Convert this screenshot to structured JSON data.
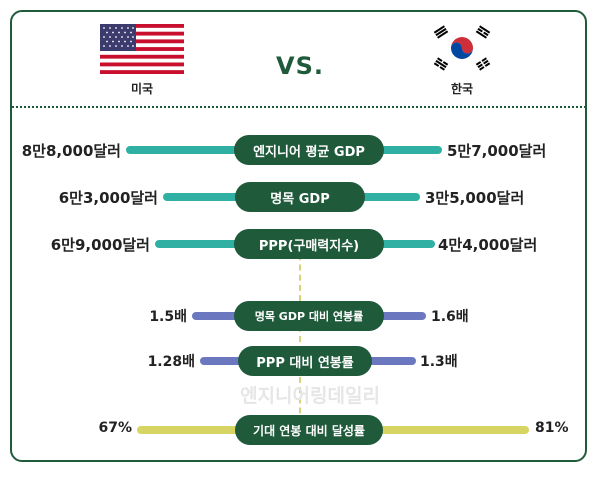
{
  "countries": {
    "left": {
      "label": "미국",
      "flag": "us-flag"
    },
    "right": {
      "label": "한국",
      "flag": "kr-flag"
    },
    "vs_label": "VS."
  },
  "colors": {
    "primary": "#1f5a3b",
    "teal": "#2fb0a2",
    "purple": "#6b78c0",
    "yellow": "#d6d462"
  },
  "rows": [
    {
      "label": "엔지니어 평균 GDP",
      "left": "8만8,000달러",
      "right": "5만7,000달러"
    },
    {
      "label": "명목 GDP",
      "left": "6만3,000달러",
      "right": "3만5,000달러"
    },
    {
      "label": "PPP(구매력지수)",
      "left": "6만9,000달러",
      "right": "4만4,000달러"
    },
    {
      "label": "명목 GDP 대비 연봉률",
      "left": "1.5배",
      "right": "1.6배"
    },
    {
      "label": "PPP 대비 연봉률",
      "left": "1.28배",
      "right": "1.3배"
    },
    {
      "label": "기대 연봉 대비 달성률",
      "left": "67%",
      "right": "81%"
    }
  ],
  "watermark": "엔지니어링데일리"
}
